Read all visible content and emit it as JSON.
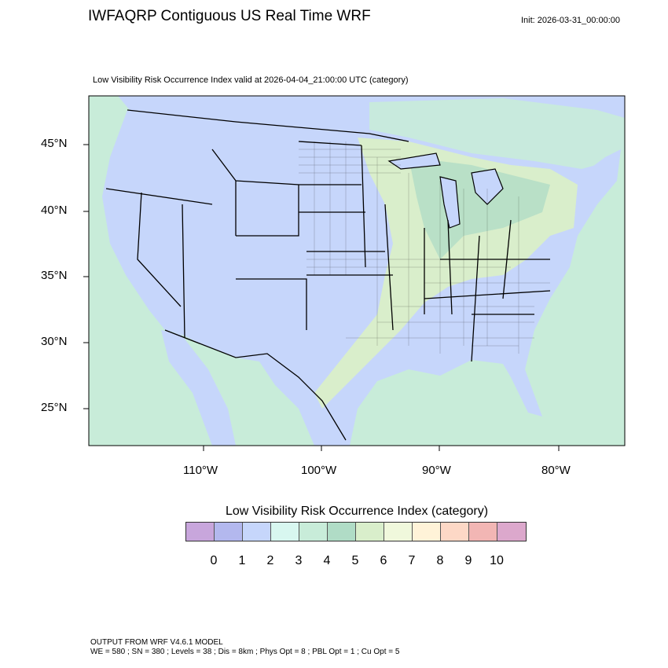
{
  "header": {
    "title": "IWFAQRP Contiguous US Real Time WRF",
    "init": "Init: 2026-03-31_00:00:00",
    "subtitle": "Low Visibility Risk Occurrence Index valid at 2026-04-04_21:00:00 UTC   (category)"
  },
  "map": {
    "lat_labels": [
      "45°N",
      "40°N",
      "35°N",
      "30°N",
      "25°N"
    ],
    "lon_labels": [
      "110°W",
      "100°W",
      "90°W",
      "80°W"
    ],
    "dominant_categories": {
      "us_land": "1-2",
      "midwest_great_lakes": "4-6",
      "ocean": "3-4"
    }
  },
  "colorbar": {
    "title": "Low Visibility Risk Occurrence Index  (category)",
    "labels": [
      "0",
      "1",
      "2",
      "3",
      "4",
      "5",
      "6",
      "7",
      "8",
      "9",
      "10"
    ],
    "colors": [
      "#c8a6dc",
      "#b3b8ee",
      "#c6d6fb",
      "#d8f7f0",
      "#c8ecd9",
      "#b0dcc6",
      "#d9eecb",
      "#f0f8dc",
      "#fff3d8",
      "#fdd8c6",
      "#f2b6b4",
      "#dca8cc"
    ]
  },
  "footer": {
    "line1": "OUTPUT FROM WRF V4.6.1 MODEL",
    "line2": "WE = 580 ; SN = 380 ; Levels = 38 ; Dis = 8km ; Phys Opt = 8 ; PBL Opt = 1 ; Cu Opt = 5"
  }
}
